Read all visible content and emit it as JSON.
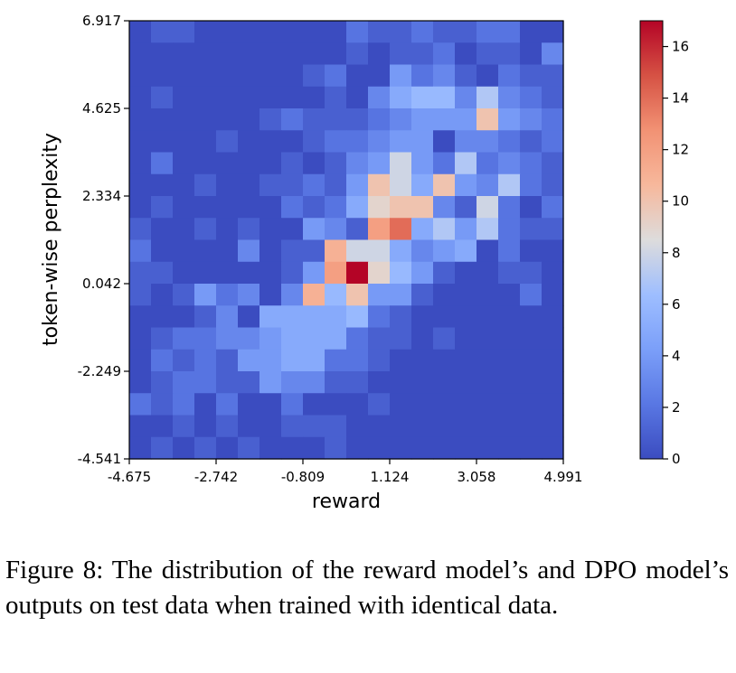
{
  "chart_data": {
    "type": "heatmap",
    "xlabel": "reward",
    "ylabel": "token-wise perplexity",
    "x_ticks": [
      "-4.675",
      "-2.742",
      "-0.809",
      "1.124",
      "3.058",
      "4.991"
    ],
    "y_ticks": [
      "6.917",
      "4.625",
      "2.334",
      "0.042",
      "-2.249",
      "-4.541"
    ],
    "xlim": [
      -4.675,
      4.991
    ],
    "ylim": [
      -4.541,
      6.917
    ],
    "grid": false,
    "colormap": "coolwarm",
    "colorbar": {
      "min": 0,
      "max": 17,
      "ticks": [
        "0",
        "2",
        "4",
        "6",
        "8",
        "10",
        "12",
        "14",
        "16"
      ]
    },
    "grid_size": [
      20,
      20
    ],
    "counts_top_to_bottom": [
      [
        0,
        1,
        1,
        0,
        0,
        0,
        0,
        0,
        0,
        0,
        2,
        1,
        1,
        2,
        1,
        1,
        2,
        2,
        0,
        0
      ],
      [
        0,
        0,
        0,
        0,
        0,
        0,
        0,
        0,
        0,
        0,
        1,
        0,
        1,
        1,
        2,
        0,
        1,
        1,
        0,
        3
      ],
      [
        0,
        0,
        0,
        0,
        0,
        0,
        0,
        0,
        1,
        2,
        0,
        0,
        4,
        2,
        3,
        1,
        0,
        2,
        1,
        1
      ],
      [
        0,
        1,
        0,
        0,
        0,
        0,
        0,
        0,
        0,
        1,
        0,
        3,
        5,
        6,
        6,
        3,
        7,
        3,
        2,
        1
      ],
      [
        0,
        0,
        0,
        0,
        0,
        0,
        1,
        2,
        1,
        1,
        1,
        2,
        3,
        4,
        4,
        4,
        10,
        4,
        3,
        2
      ],
      [
        0,
        0,
        0,
        0,
        1,
        0,
        0,
        0,
        1,
        2,
        2,
        3,
        4,
        4,
        0,
        3,
        3,
        2,
        1,
        2
      ],
      [
        0,
        2,
        0,
        0,
        0,
        0,
        0,
        1,
        0,
        1,
        3,
        4,
        8,
        4,
        2,
        7,
        2,
        3,
        2,
        1
      ],
      [
        0,
        0,
        0,
        1,
        0,
        0,
        1,
        1,
        2,
        1,
        4,
        10,
        8,
        5,
        10,
        4,
        3,
        7,
        2,
        1
      ],
      [
        0,
        1,
        0,
        0,
        0,
        0,
        0,
        2,
        1,
        2,
        5,
        9,
        10,
        10,
        3,
        1,
        8,
        2,
        0,
        2
      ],
      [
        1,
        0,
        0,
        1,
        0,
        1,
        0,
        0,
        4,
        3,
        1,
        12,
        14,
        5,
        7,
        4,
        7,
        2,
        1,
        1
      ],
      [
        2,
        0,
        0,
        0,
        0,
        3,
        0,
        1,
        1,
        11,
        8,
        8,
        5,
        3,
        4,
        5,
        0,
        2,
        0,
        0
      ],
      [
        1,
        1,
        0,
        0,
        0,
        0,
        0,
        1,
        4,
        12,
        17,
        9,
        6,
        4,
        1,
        0,
        0,
        1,
        1,
        0
      ],
      [
        1,
        0,
        1,
        4,
        2,
        3,
        0,
        3,
        11,
        6,
        10,
        4,
        4,
        1,
        0,
        0,
        0,
        0,
        2,
        0
      ],
      [
        0,
        0,
        0,
        1,
        3,
        0,
        5,
        5,
        5,
        5,
        6,
        2,
        1,
        0,
        0,
        0,
        0,
        0,
        0,
        0
      ],
      [
        0,
        1,
        2,
        2,
        3,
        3,
        4,
        5,
        5,
        5,
        2,
        1,
        1,
        0,
        1,
        0,
        0,
        0,
        0,
        0
      ],
      [
        0,
        2,
        1,
        2,
        1,
        4,
        4,
        5,
        5,
        2,
        2,
        1,
        0,
        0,
        0,
        0,
        0,
        0,
        0,
        0
      ],
      [
        0,
        1,
        2,
        2,
        1,
        1,
        4,
        3,
        3,
        1,
        1,
        0,
        0,
        0,
        0,
        0,
        0,
        0,
        0,
        0
      ],
      [
        2,
        1,
        2,
        0,
        2,
        0,
        0,
        2,
        0,
        0,
        0,
        1,
        0,
        0,
        0,
        0,
        0,
        0,
        0,
        0
      ],
      [
        0,
        0,
        1,
        0,
        1,
        0,
        0,
        1,
        1,
        1,
        0,
        0,
        0,
        0,
        0,
        0,
        0,
        0,
        0,
        0
      ],
      [
        0,
        1,
        0,
        1,
        0,
        1,
        0,
        0,
        0,
        1,
        0,
        0,
        0,
        0,
        0,
        0,
        0,
        0,
        0,
        0
      ]
    ]
  },
  "caption": "Figure 8: The distribution of the reward model’s and DPO model’s outputs on test data when trained with identical data."
}
